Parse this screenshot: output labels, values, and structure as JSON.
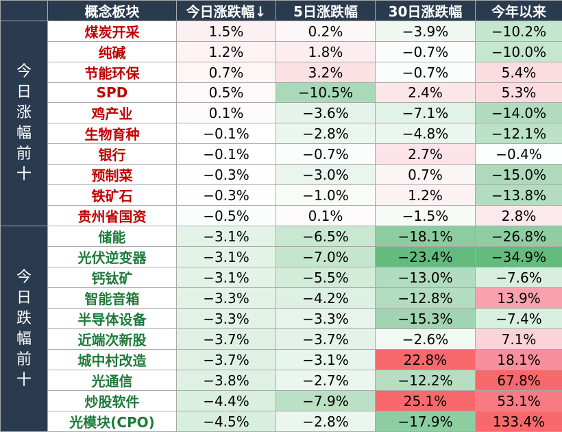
{
  "headers": [
    "概念板块",
    "今日涨跌幅↓",
    "5日涨跌幅",
    "30日涨跌幅",
    "今年以来"
  ],
  "groups": [
    {
      "label": "今日涨幅前十",
      "name_color": "#c00000",
      "rows": [
        {
          "name": "煤炭开采",
          "values": [
            "1.5%",
            "0.2%",
            "−3.9%",
            "−10.2%"
          ],
          "colors": [
            "#fdf0f2",
            "#fdf7f8",
            "#eef8f1",
            "#c4e6cf"
          ]
        },
        {
          "name": "纯碱",
          "values": [
            "1.2%",
            "1.8%",
            "−0.7%",
            "−10.0%"
          ],
          "colors": [
            "#fdf2f4",
            "#fcedf0",
            "#fafdfb",
            "#c5e7d0"
          ]
        },
        {
          "name": "节能环保",
          "values": [
            "0.7%",
            "3.2%",
            "−0.7%",
            "5.4%"
          ],
          "colors": [
            "#fdf6f7",
            "#fbe0e4",
            "#fafdfb",
            "#fbdde1"
          ]
        },
        {
          "name": "SPD",
          "values": [
            "0.5%",
            "−10.5%",
            "2.4%",
            "5.3%"
          ],
          "colors": [
            "#fdf8f9",
            "#a9d9b8",
            "#fbe6e9",
            "#fbdde1"
          ]
        },
        {
          "name": "鸡产业",
          "values": [
            "0.1%",
            "−3.6%",
            "−7.1%",
            "−14.0%"
          ],
          "colors": [
            "#fdfbfb",
            "#e5f4ea",
            "#e1f2e7",
            "#b2dcbf"
          ]
        },
        {
          "name": "生物育种",
          "values": [
            "−0.1%",
            "−2.8%",
            "−4.8%",
            "−12.1%"
          ],
          "colors": [
            "#ffffff",
            "#ebf6ef",
            "#eaf6ee",
            "#bbe1c7"
          ]
        },
        {
          "name": "银行",
          "values": [
            "−0.1%",
            "−0.7%",
            "2.7%",
            "−0.4%"
          ],
          "colors": [
            "#ffffff",
            "#fbfdfc",
            "#fbe3e7",
            "#fcfefd"
          ]
        },
        {
          "name": "预制菜",
          "values": [
            "−0.3%",
            "−3.0%",
            "0.7%",
            "−15.0%"
          ],
          "colors": [
            "#fdfefd",
            "#e9f5ed",
            "#fcf5f6",
            "#aedabb"
          ]
        },
        {
          "name": "铁矿石",
          "values": [
            "−0.3%",
            "−1.0%",
            "1.2%",
            "−13.8%"
          ],
          "colors": [
            "#fdfefd",
            "#f8fcf9",
            "#fcf1f3",
            "#b3dcc0"
          ]
        },
        {
          "name": "贵州省国资",
          "values": [
            "−0.5%",
            "0.1%",
            "−1.5%",
            "2.8%"
          ],
          "colors": [
            "#fbfdfc",
            "#fdfbfb",
            "#f6fbf8",
            "#fce9ec"
          ]
        }
      ]
    },
    {
      "label": "今日跌幅前十",
      "name_color": "#1e7a3a",
      "rows": [
        {
          "name": "储能",
          "values": [
            "−3.1%",
            "−6.5%",
            "−18.1%",
            "−26.8%"
          ],
          "colors": [
            "#e3f3e8",
            "#c8e8d2",
            "#8ccda0",
            "#8fcea3"
          ]
        },
        {
          "name": "光伏逆变器",
          "values": [
            "−3.1%",
            "−7.0%",
            "−23.4%",
            "−34.9%"
          ],
          "colors": [
            "#e3f3e8",
            "#c4e6cf",
            "#63bc7e",
            "#63bb7c"
          ]
        },
        {
          "name": "钙钛矿",
          "values": [
            "−3.1%",
            "−5.5%",
            "−13.0%",
            "−7.6%"
          ],
          "colors": [
            "#e3f3e8",
            "#d2ecda",
            "#b2dcbf",
            "#d8efe0"
          ]
        },
        {
          "name": "智能音箱",
          "values": [
            "−3.3%",
            "−4.2%",
            "−12.8%",
            "13.9%"
          ],
          "colors": [
            "#e2f2e7",
            "#dcf0e3",
            "#b3dcc0",
            "#f9a2ad"
          ]
        },
        {
          "name": "半导体设备",
          "values": [
            "−3.3%",
            "−3.3%",
            "−15.3%",
            "−7.4%"
          ],
          "colors": [
            "#e2f2e7",
            "#e6f4eb",
            "#a1d5b1",
            "#d9efe0"
          ]
        },
        {
          "name": "近端次新股",
          "values": [
            "−3.7%",
            "−3.7%",
            "−2.6%",
            "7.1%"
          ],
          "colors": [
            "#dff1e5",
            "#e3f3e8",
            "#f0f9f3",
            "#fbd3d9"
          ]
        },
        {
          "name": "城中村改造",
          "values": [
            "−3.7%",
            "−3.1%",
            "22.8%",
            "18.1%"
          ],
          "colors": [
            "#dff1e5",
            "#e7f5ec",
            "#f8696b",
            "#f7909c"
          ]
        },
        {
          "name": "光通信",
          "values": [
            "−3.8%",
            "−2.7%",
            "−12.2%",
            "67.8%"
          ],
          "colors": [
            "#def1e4",
            "#ebf6ef",
            "#b7dec3",
            "#f8696b"
          ]
        },
        {
          "name": "炒股软件",
          "values": [
            "−4.4%",
            "−7.9%",
            "25.1%",
            "53.1%"
          ],
          "colors": [
            "#d9efe0",
            "#bae0c6",
            "#f8696b",
            "#f87b83"
          ]
        },
        {
          "name": "光模块(CPO)",
          "values": [
            "−4.5%",
            "−2.8%",
            "−17.9%",
            "133.4%"
          ],
          "colors": [
            "#d8efe0",
            "#ebf6ef",
            "#8dcea1",
            "#f8696b"
          ]
        }
      ]
    }
  ]
}
